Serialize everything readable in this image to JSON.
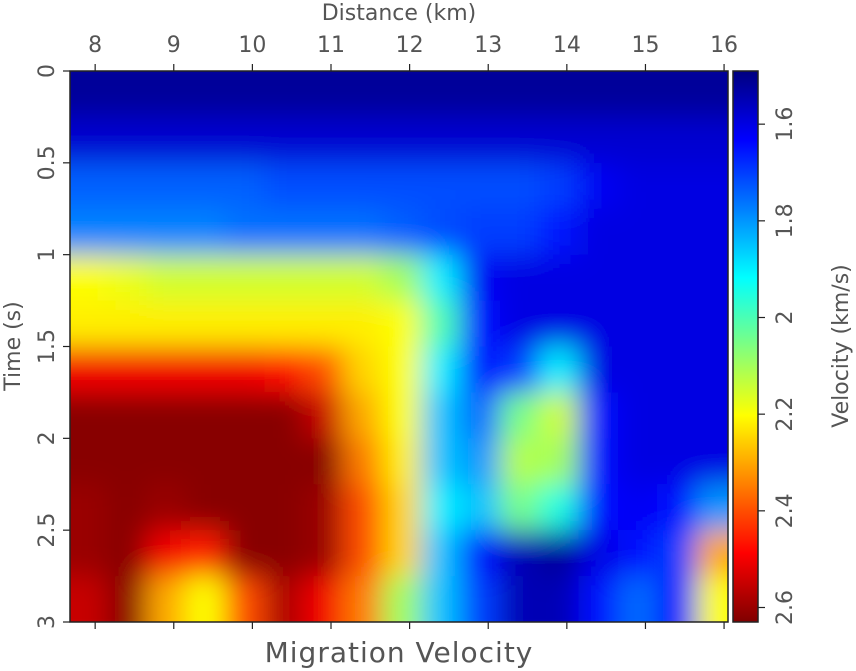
{
  "chart_data": {
    "type": "heatmap",
    "title": "Distance (km)",
    "ylabel": "Time (s)",
    "colorbar_label": "Velocity (km/s)",
    "caption": "Migration Velocity",
    "colormap": "jet",
    "x": [
      7.9,
      8.4,
      8.9,
      9.4,
      9.9,
      10.4,
      10.9,
      11.4,
      11.9,
      12.4,
      12.9,
      13.4,
      13.9,
      14.4,
      14.9,
      15.4,
      15.9
    ],
    "y": [
      0.125,
      0.375,
      0.625,
      0.875,
      1.125,
      1.375,
      1.625,
      1.875,
      2.125,
      2.375,
      2.625,
      2.875
    ],
    "values": [
      [
        1.52,
        1.52,
        1.52,
        1.52,
        1.52,
        1.52,
        1.52,
        1.52,
        1.52,
        1.52,
        1.52,
        1.52,
        1.52,
        1.52,
        1.52,
        1.52,
        1.52
      ],
      [
        1.58,
        1.58,
        1.58,
        1.58,
        1.58,
        1.58,
        1.58,
        1.58,
        1.58,
        1.58,
        1.58,
        1.58,
        1.58,
        1.58,
        1.58,
        1.58,
        1.58
      ],
      [
        1.74,
        1.74,
        1.74,
        1.74,
        1.74,
        1.72,
        1.72,
        1.72,
        1.72,
        1.72,
        1.72,
        1.72,
        1.7,
        1.62,
        1.6,
        1.6,
        1.6
      ],
      [
        1.78,
        1.78,
        1.78,
        1.78,
        1.76,
        1.76,
        1.76,
        1.76,
        1.74,
        1.72,
        1.7,
        1.7,
        1.66,
        1.6,
        1.6,
        1.6,
        1.6
      ],
      [
        2.2,
        2.18,
        2.15,
        2.15,
        2.15,
        2.15,
        2.15,
        2.15,
        2.1,
        1.9,
        1.62,
        1.6,
        1.6,
        1.6,
        1.6,
        1.6,
        1.6
      ],
      [
        2.22,
        2.22,
        2.22,
        2.22,
        2.22,
        2.22,
        2.22,
        2.22,
        2.2,
        2.0,
        1.65,
        1.6,
        1.6,
        1.6,
        1.6,
        1.6,
        1.6
      ],
      [
        2.5,
        2.5,
        2.5,
        2.5,
        2.5,
        2.48,
        2.4,
        2.25,
        2.2,
        1.9,
        1.65,
        1.7,
        1.9,
        1.6,
        1.6,
        1.6,
        1.6
      ],
      [
        2.62,
        2.62,
        2.62,
        2.62,
        2.62,
        2.62,
        2.55,
        2.3,
        2.2,
        1.85,
        1.75,
        2.05,
        2.15,
        1.65,
        1.6,
        1.6,
        1.6
      ],
      [
        2.62,
        2.62,
        2.62,
        2.62,
        2.62,
        2.62,
        2.62,
        2.35,
        2.22,
        1.85,
        1.8,
        2.12,
        2.1,
        1.65,
        1.6,
        1.6,
        1.6
      ],
      [
        2.6,
        2.62,
        2.6,
        2.62,
        2.62,
        2.62,
        2.6,
        2.4,
        2.25,
        1.9,
        1.85,
        2.05,
        1.95,
        1.65,
        1.62,
        1.65,
        1.8
      ],
      [
        2.6,
        2.62,
        2.5,
        2.45,
        2.62,
        2.62,
        2.6,
        2.4,
        2.25,
        1.85,
        1.65,
        1.55,
        1.52,
        1.6,
        1.65,
        1.7,
        2.3
      ],
      [
        2.55,
        2.62,
        2.3,
        2.2,
        2.4,
        2.58,
        2.5,
        2.35,
        2.1,
        1.85,
        1.7,
        1.55,
        1.55,
        1.65,
        1.75,
        1.65,
        2.2
      ]
    ],
    "xlim": [
      7.68,
      16.05
    ],
    "ylim": [
      0,
      3
    ],
    "y_inverted": true,
    "xticks": [
      8,
      9,
      10,
      11,
      12,
      13,
      14,
      15,
      16
    ],
    "yticks": [
      0,
      0.5,
      1,
      1.5,
      2,
      2.5,
      3
    ],
    "clim": [
      1.49,
      2.63
    ],
    "cticks": [
      1.6,
      1.8,
      2,
      2.2,
      2.4,
      2.6
    ]
  }
}
